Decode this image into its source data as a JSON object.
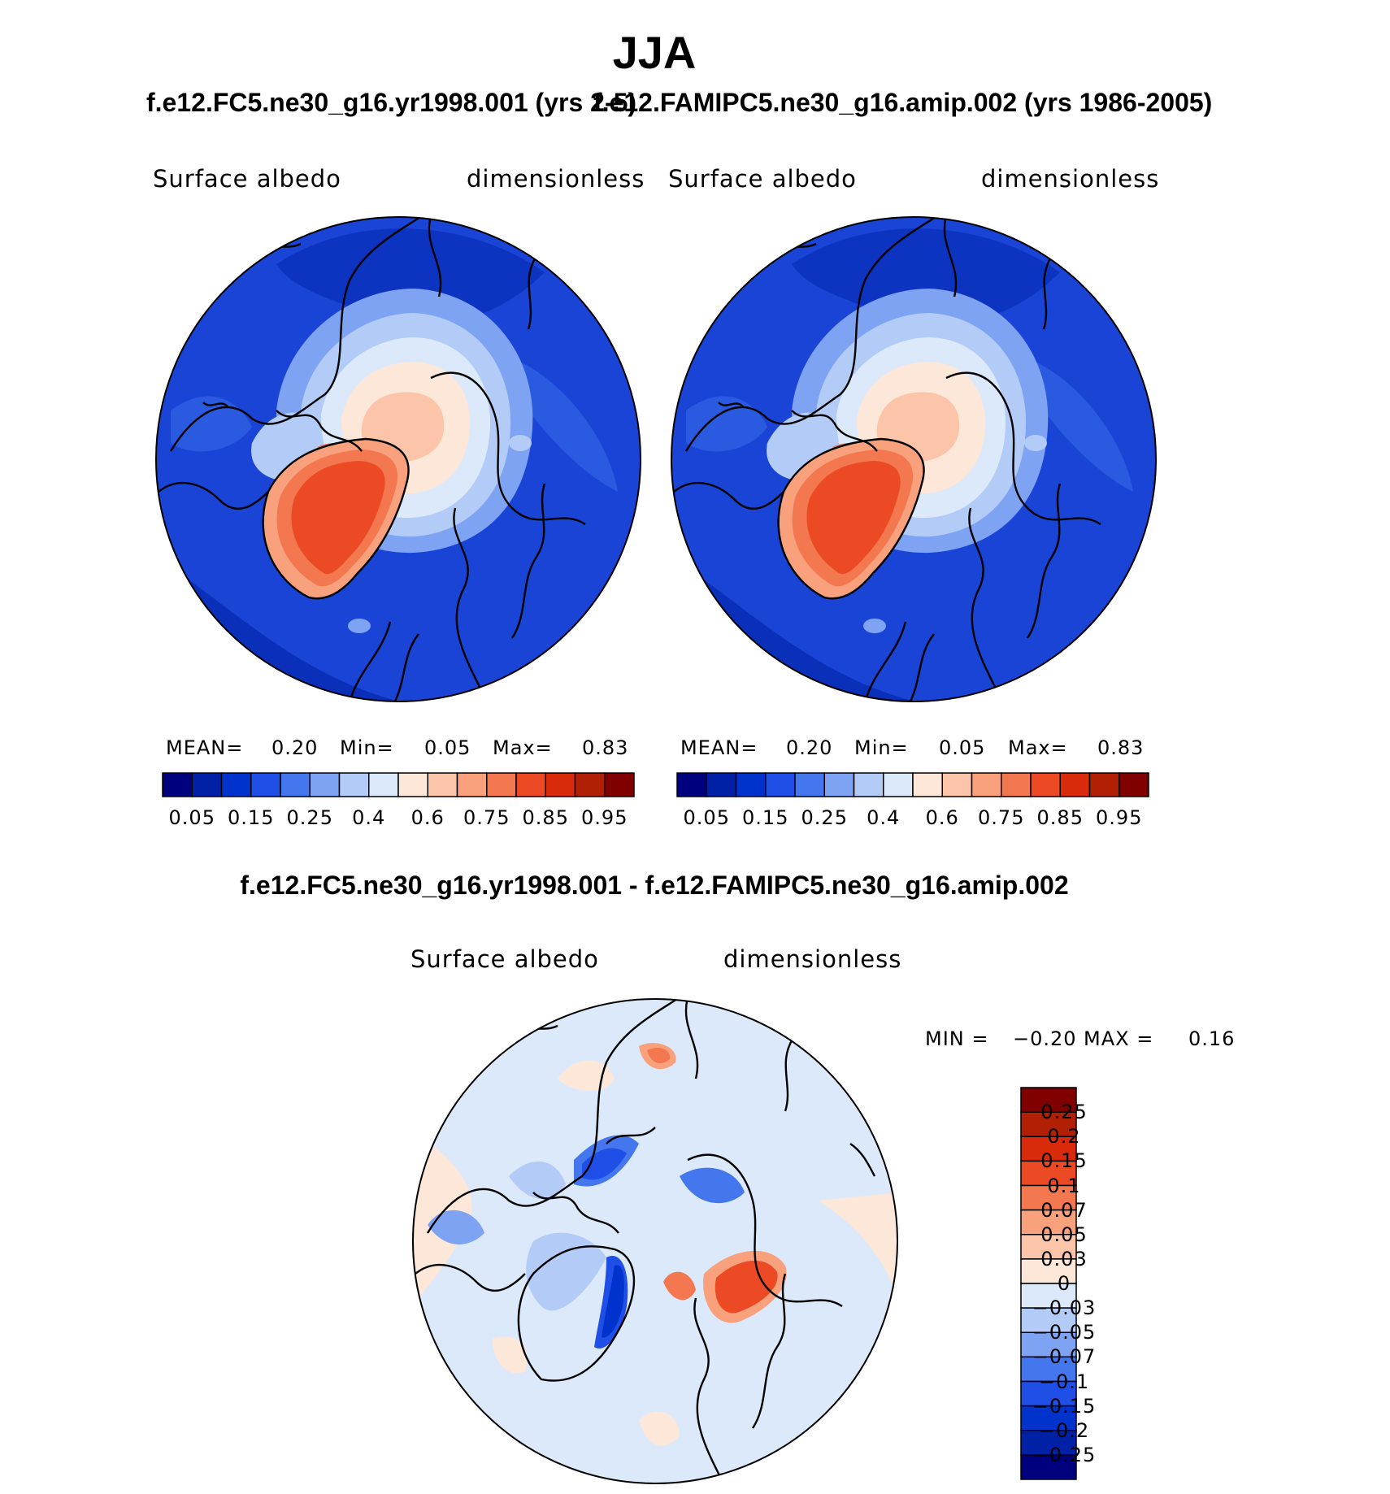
{
  "title": "JJA",
  "panel_left": {
    "case": "f.e12.FC5.ne30_g16.yr1998.001 (yrs 2-5)",
    "variable": "Surface albedo",
    "units": "dimensionless",
    "stats": {
      "mean_label": "MEAN=",
      "mean": "0.20",
      "min_label": "Min=",
      "min": "0.05",
      "max_label": "Max=",
      "max": "0.83"
    }
  },
  "panel_right": {
    "case": "f.e12.FAMIPC5.ne30_g16.amip.002 (yrs 1986-2005)",
    "variable": "Surface albedo",
    "units": "dimensionless",
    "stats": {
      "mean_label": "MEAN=",
      "mean": "0.20",
      "min_label": "Min=",
      "min": "0.05",
      "max_label": "Max=",
      "max": "0.83"
    }
  },
  "panel_diff": {
    "title": "f.e12.FC5.ne30_g16.yr1998.001 - f.e12.FAMIPC5.ne30_g16.amip.002",
    "variable": "Surface albedo",
    "units": "dimensionless",
    "stats": {
      "min_label": "MIN =",
      "min": "−0.20",
      "max_label": "MAX =",
      "max": "0.16"
    }
  },
  "colorbar_abs": {
    "colors": [
      "#00007f",
      "#0021a6",
      "#0033cc",
      "#1f4fe6",
      "#4477ee",
      "#7ea3f3",
      "#b2cbf7",
      "#dbe9fb",
      "#fde7d8",
      "#fcc5a9",
      "#f9a07c",
      "#f3774f",
      "#ec4a25",
      "#d92b0c",
      "#b11f05",
      "#800000"
    ],
    "tick_labels": [
      "0.05",
      "0.15",
      "0.25",
      "0.4",
      "0.6",
      "0.75",
      "0.85",
      "0.95"
    ]
  },
  "colorbar_diff": {
    "colors": [
      "#00007f",
      "#0021a6",
      "#0033cc",
      "#1f4fe6",
      "#4477ee",
      "#7ea3f3",
      "#b2cbf7",
      "#dbe9fb",
      "#fde7d8",
      "#fcc5a9",
      "#f9a07c",
      "#f3774f",
      "#ec4a25",
      "#d92b0c",
      "#b11f05",
      "#800000"
    ],
    "tick_labels": [
      "0.25",
      "0.2",
      "0.15",
      "0.1",
      "0.07",
      "0.05",
      "0.03",
      "0",
      "−0.03",
      "−0.05",
      "−0.07",
      "−0.1",
      "−0.15",
      "−0.2",
      "−0.25"
    ]
  }
}
